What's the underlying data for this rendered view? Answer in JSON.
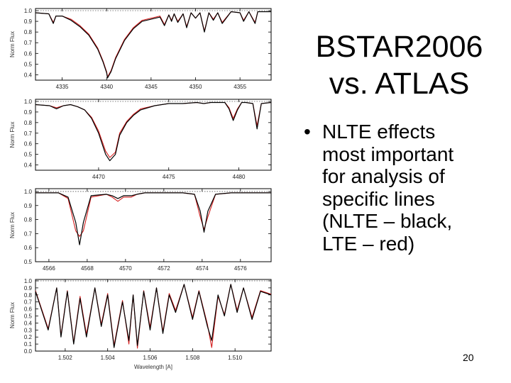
{
  "slide": {
    "title_line1": "BSTAR2006",
    "title_line2": "vs. ATLAS",
    "bullet_marker": "•",
    "bullet_text": "NLTE effects\nmost important\nfor analysis of\nspecific lines\n(NLTE – black,\nLTE – red)",
    "slide_number": "20"
  },
  "colors": {
    "nlte": "#000000",
    "lte": "#d62020",
    "frame": "#000000"
  },
  "chart_data": [
    {
      "type": "line",
      "ylabel": "Norm Flux",
      "xlim": [
        4332,
        4358.5
      ],
      "ylim": [
        0.35,
        1.02
      ],
      "xticks": [
        4335,
        4340,
        4345,
        4350,
        4355
      ],
      "xtick_labels": [
        "4335",
        "4340",
        "4345",
        "4350",
        "4355"
      ],
      "yticks": [
        0.4,
        0.5,
        0.6,
        0.7,
        0.8,
        0.9,
        1.0
      ],
      "ytick_labels": [
        "0.4",
        "0.5",
        "0.6",
        "0.7",
        "0.8",
        "0.9",
        "1.0"
      ],
      "series": [
        {
          "x": [
            4332,
            4333.5,
            4334,
            4334.3,
            4335,
            4336,
            4337,
            4338,
            4339,
            4339.6,
            4340,
            4340.1,
            4340.5,
            4341,
            4342,
            4343,
            4344,
            4345,
            4346,
            4346.5,
            4347,
            4347.3,
            4347.6,
            4348,
            4348.6,
            4349,
            4349.5,
            4350,
            4350.5,
            4351,
            4351.5,
            4352,
            4352.5,
            4353,
            4354,
            4355,
            4355.4,
            4356,
            4356.7,
            4357,
            4358.5
          ],
          "y": [
            0.98,
            0.97,
            0.88,
            0.95,
            0.95,
            0.91,
            0.85,
            0.77,
            0.64,
            0.52,
            0.42,
            0.37,
            0.43,
            0.55,
            0.72,
            0.83,
            0.9,
            0.92,
            0.94,
            0.86,
            0.96,
            0.9,
            0.97,
            0.89,
            0.97,
            0.84,
            0.98,
            0.93,
            0.98,
            0.8,
            0.98,
            0.91,
            0.98,
            0.88,
            0.99,
            0.98,
            0.9,
            0.99,
            0.88,
            0.99,
            0.99
          ]
        },
        {
          "x": [
            4332,
            4333.5,
            4334,
            4334.3,
            4335,
            4336,
            4337,
            4338,
            4339,
            4339.6,
            4340,
            4340.1,
            4340.5,
            4341,
            4342,
            4343,
            4344,
            4345,
            4346,
            4346.5,
            4347,
            4347.3,
            4347.6,
            4348,
            4348.6,
            4349,
            4349.5,
            4350,
            4350.5,
            4351,
            4351.5,
            4352,
            4352.5,
            4353,
            4354,
            4355,
            4355.4,
            4356,
            4356.7,
            4357,
            4358.5
          ],
          "y": [
            0.98,
            0.97,
            0.89,
            0.95,
            0.95,
            0.92,
            0.86,
            0.78,
            0.65,
            0.53,
            0.43,
            0.38,
            0.44,
            0.56,
            0.73,
            0.84,
            0.91,
            0.93,
            0.95,
            0.87,
            0.96,
            0.91,
            0.97,
            0.9,
            0.97,
            0.85,
            0.98,
            0.93,
            0.98,
            0.81,
            0.98,
            0.92,
            0.98,
            0.89,
            0.99,
            0.98,
            0.91,
            0.99,
            0.89,
            0.99,
            0.99
          ]
        }
      ]
    },
    {
      "type": "line",
      "ylabel": "Norm Flux",
      "xlim": [
        4465.5,
        4482.3
      ],
      "ylim": [
        0.35,
        1.02
      ],
      "xticks": [
        4470,
        4475,
        4480
      ],
      "xtick_labels": [
        "4470",
        "4475",
        "4480"
      ],
      "yticks": [
        0.4,
        0.5,
        0.6,
        0.7,
        0.8,
        0.9,
        1.0
      ],
      "ytick_labels": [
        "0.4",
        "0.5",
        "0.6",
        "0.7",
        "0.8",
        "0.9",
        "1.0"
      ],
      "series": [
        {
          "x": [
            4465.5,
            4466.5,
            4467,
            4467.5,
            4468,
            4468.5,
            4469,
            4469.5,
            4470,
            4470.5,
            4470.8,
            4471.2,
            4471.5,
            4472,
            4472.5,
            4473,
            4474,
            4475,
            4476,
            4477,
            4477.5,
            4478,
            4478.5,
            4479,
            4479.3,
            4479.6,
            4479.9,
            4480.2,
            4480.5,
            4481,
            4481.3,
            4481.6,
            4482.3
          ],
          "y": [
            0.97,
            0.96,
            0.93,
            0.96,
            0.97,
            0.95,
            0.92,
            0.84,
            0.7,
            0.5,
            0.44,
            0.5,
            0.68,
            0.8,
            0.87,
            0.92,
            0.96,
            0.98,
            0.98,
            0.99,
            0.98,
            0.99,
            0.99,
            0.99,
            0.93,
            0.82,
            0.92,
            0.99,
            0.99,
            0.98,
            0.74,
            0.98,
            0.99
          ]
        },
        {
          "x": [
            4465.5,
            4466.5,
            4467,
            4467.5,
            4468,
            4468.5,
            4469,
            4469.5,
            4470,
            4470.5,
            4470.8,
            4471.2,
            4471.5,
            4472,
            4472.5,
            4473,
            4474,
            4475,
            4476,
            4477,
            4477.5,
            4478,
            4478.5,
            4479,
            4479.3,
            4479.6,
            4479.9,
            4480.2,
            4480.5,
            4481,
            4481.3,
            4481.6,
            4482.3
          ],
          "y": [
            0.97,
            0.96,
            0.94,
            0.96,
            0.97,
            0.95,
            0.92,
            0.85,
            0.72,
            0.53,
            0.47,
            0.52,
            0.7,
            0.81,
            0.88,
            0.93,
            0.96,
            0.98,
            0.98,
            0.99,
            0.98,
            0.99,
            0.99,
            0.99,
            0.94,
            0.84,
            0.93,
            0.99,
            0.99,
            0.98,
            0.77,
            0.98,
            0.99
          ]
        }
      ]
    },
    {
      "type": "line",
      "ylabel": "Norm Flux",
      "xlim": [
        4565.3,
        4577.6
      ],
      "ylim": [
        0.5,
        1.02
      ],
      "xticks": [
        4566,
        4568,
        4570,
        4572,
        4574,
        4576
      ],
      "xtick_labels": [
        "4566",
        "4568",
        "4570",
        "4572",
        "4574",
        "4576"
      ],
      "yticks": [
        0.5,
        0.6,
        0.7,
        0.8,
        0.9,
        1.0
      ],
      "ytick_labels": [
        "0.5",
        "0.6",
        "0.7",
        "0.8",
        "0.9",
        "1.0"
      ],
      "series": [
        {
          "x": [
            4565.3,
            4566.5,
            4567.0,
            4567.4,
            4567.6,
            4567.8,
            4568.2,
            4569.0,
            4569.3,
            4569.6,
            4569.9,
            4570.3,
            4570.6,
            4571.0,
            4572.0,
            4573.0,
            4573.6,
            4573.9,
            4574.1,
            4574.3,
            4574.7,
            4575.5,
            4576.5,
            4577.6
          ],
          "y": [
            0.99,
            0.99,
            0.96,
            0.78,
            0.62,
            0.78,
            0.97,
            0.98,
            0.97,
            0.95,
            0.97,
            0.97,
            0.98,
            0.99,
            0.99,
            0.99,
            0.98,
            0.86,
            0.71,
            0.86,
            0.98,
            0.99,
            0.99,
            0.99
          ]
        },
        {
          "x": [
            4565.3,
            4566.5,
            4567.0,
            4567.4,
            4567.6,
            4567.8,
            4568.2,
            4569.0,
            4569.3,
            4569.6,
            4569.9,
            4570.3,
            4570.6,
            4571.0,
            4572.0,
            4573.0,
            4573.6,
            4573.9,
            4574.1,
            4574.3,
            4574.7,
            4575.5,
            4576.5,
            4577.6
          ],
          "y": [
            0.99,
            0.99,
            0.95,
            0.72,
            0.68,
            0.72,
            0.96,
            0.98,
            0.96,
            0.93,
            0.96,
            0.96,
            0.98,
            0.99,
            0.99,
            0.99,
            0.98,
            0.82,
            0.73,
            0.82,
            0.98,
            0.99,
            0.99,
            0.99
          ]
        }
      ]
    },
    {
      "type": "line",
      "ylabel": "Norm Flux",
      "xlabel": "Wavelength [A]",
      "xlim": [
        1.5006,
        1.5117
      ],
      "ylim": [
        0.0,
        1.02
      ],
      "xticks": [
        1.502,
        1.504,
        1.506,
        1.508,
        1.51
      ],
      "xtick_labels": [
        "1.502",
        "1.504",
        "1.506",
        "1.508",
        "1.510"
      ],
      "yticks": [
        0.0,
        0.1,
        0.2,
        0.3,
        0.4,
        0.5,
        0.6,
        0.7,
        0.8,
        0.9,
        1.0
      ],
      "ytick_labels": [
        "0.0",
        "0.1",
        "0.2",
        "0.3",
        "0.4",
        "0.5",
        "0.6",
        "0.7",
        "0.8",
        "0.9",
        "1.0"
      ],
      "series": [
        {
          "x": [
            1.5006,
            1.5012,
            1.5016,
            1.5018,
            1.5021,
            1.5024,
            1.5027,
            1.503,
            1.5034,
            1.5037,
            1.504,
            1.5043,
            1.5047,
            1.505,
            1.5052,
            1.5054,
            1.5057,
            1.506,
            1.5063,
            1.5066,
            1.5069,
            1.5072,
            1.5076,
            1.508,
            1.5083,
            1.5087,
            1.5089,
            1.5092,
            1.5095,
            1.5098,
            1.5101,
            1.5104,
            1.5108,
            1.5112,
            1.5117
          ],
          "y": [
            0.85,
            0.3,
            0.9,
            0.2,
            0.85,
            0.1,
            0.75,
            0.2,
            0.9,
            0.35,
            0.8,
            0.05,
            0.7,
            0.15,
            0.8,
            0.08,
            0.85,
            0.3,
            0.9,
            0.25,
            0.8,
            0.55,
            0.95,
            0.45,
            0.85,
            0.35,
            0.15,
            0.8,
            0.5,
            0.95,
            0.55,
            0.9,
            0.45,
            0.85,
            0.8
          ]
        },
        {
          "x": [
            1.5006,
            1.5012,
            1.5016,
            1.5018,
            1.5021,
            1.5024,
            1.5027,
            1.503,
            1.5034,
            1.5037,
            1.504,
            1.5043,
            1.5047,
            1.505,
            1.5052,
            1.5054,
            1.5057,
            1.506,
            1.5063,
            1.5066,
            1.5069,
            1.5072,
            1.5076,
            1.508,
            1.5083,
            1.5087,
            1.5089,
            1.5092,
            1.5095,
            1.5098,
            1.5101,
            1.5104,
            1.5108,
            1.5112,
            1.5117
          ],
          "y": [
            0.86,
            0.32,
            0.9,
            0.22,
            0.86,
            0.12,
            0.78,
            0.24,
            0.9,
            0.38,
            0.82,
            0.08,
            0.72,
            0.1,
            0.8,
            0.04,
            0.86,
            0.34,
            0.9,
            0.28,
            0.82,
            0.58,
            0.95,
            0.48,
            0.86,
            0.38,
            0.05,
            0.78,
            0.52,
            0.95,
            0.58,
            0.9,
            0.48,
            0.86,
            0.81
          ]
        }
      ]
    }
  ]
}
